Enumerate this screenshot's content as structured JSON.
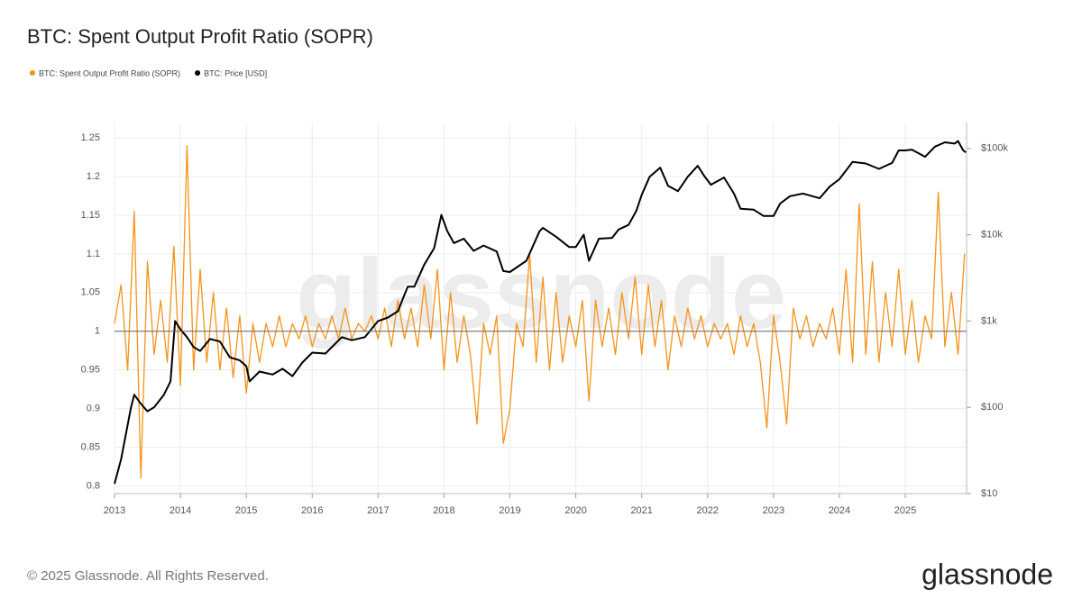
{
  "chart_data": {
    "type": "line",
    "title": "BTC: Spent Output Profit Ratio (SOPR)",
    "watermark": "glassnode",
    "copyright": "© 2025 Glassnode. All Rights Reserved.",
    "logo": "glassnode",
    "xlim": [
      2013,
      2025.93
    ],
    "xticks": [
      2013,
      2014,
      2015,
      2016,
      2017,
      2018,
      2019,
      2020,
      2021,
      2022,
      2023,
      2024,
      2025
    ],
    "ylim": [
      0.79,
      1.27
    ],
    "yticks": [
      0.8,
      0.85,
      0.9,
      0.95,
      1,
      1.05,
      1.1,
      1.15,
      1.2,
      1.25
    ],
    "y2lim": [
      10,
      200000
    ],
    "y2scale": "log",
    "y2ticks": [
      {
        "value": 10,
        "label": "$10"
      },
      {
        "value": 100,
        "label": "$100"
      },
      {
        "value": 1000,
        "label": "$1k"
      },
      {
        "value": 10000,
        "label": "$10k"
      },
      {
        "value": 100000,
        "label": "$100k"
      }
    ],
    "hline": 1,
    "grid": true,
    "legend": "top-left",
    "series": [
      {
        "name": "BTC: Spent Output Profit Ratio (SOPR)",
        "color": "#f7931a",
        "axis": "y",
        "x": [
          2013.0,
          2013.1,
          2013.2,
          2013.3,
          2013.4,
          2013.5,
          2013.6,
          2013.7,
          2013.8,
          2013.9,
          2014.0,
          2014.1,
          2014.2,
          2014.3,
          2014.4,
          2014.5,
          2014.6,
          2014.7,
          2014.8,
          2014.9,
          2015.0,
          2015.1,
          2015.2,
          2015.3,
          2015.4,
          2015.5,
          2015.6,
          2015.7,
          2015.8,
          2015.9,
          2016.0,
          2016.1,
          2016.2,
          2016.3,
          2016.4,
          2016.5,
          2016.6,
          2016.7,
          2016.8,
          2016.9,
          2017.0,
          2017.1,
          2017.2,
          2017.3,
          2017.4,
          2017.5,
          2017.6,
          2017.7,
          2017.8,
          2017.9,
          2018.0,
          2018.1,
          2018.2,
          2018.3,
          2018.4,
          2018.5,
          2018.6,
          2018.7,
          2018.8,
          2018.9,
          2019.0,
          2019.1,
          2019.2,
          2019.3,
          2019.4,
          2019.5,
          2019.6,
          2019.7,
          2019.8,
          2019.9,
          2020.0,
          2020.1,
          2020.2,
          2020.3,
          2020.4,
          2020.5,
          2020.6,
          2020.7,
          2020.8,
          2020.9,
          2021.0,
          2021.1,
          2021.2,
          2021.3,
          2021.4,
          2021.5,
          2021.6,
          2021.7,
          2021.8,
          2021.9,
          2022.0,
          2022.1,
          2022.2,
          2022.3,
          2022.4,
          2022.5,
          2022.6,
          2022.7,
          2022.8,
          2022.9,
          2023.0,
          2023.1,
          2023.2,
          2023.3,
          2023.4,
          2023.5,
          2023.6,
          2023.7,
          2023.8,
          2023.9,
          2024.0,
          2024.1,
          2024.2,
          2024.3,
          2024.4,
          2024.5,
          2024.6,
          2024.7,
          2024.8,
          2024.9,
          2025.0,
          2025.1,
          2025.2,
          2025.3,
          2025.4,
          2025.5,
          2025.6,
          2025.7,
          2025.8,
          2025.9
        ],
        "values": [
          1.01,
          1.06,
          0.95,
          1.155,
          0.81,
          1.09,
          0.97,
          1.04,
          0.96,
          1.11,
          0.93,
          1.24,
          0.95,
          1.08,
          0.96,
          1.05,
          0.95,
          1.03,
          0.94,
          1.02,
          0.92,
          1.01,
          0.96,
          1.01,
          0.98,
          1.02,
          0.98,
          1.01,
          0.99,
          1.02,
          0.98,
          1.01,
          0.99,
          1.02,
          0.99,
          1.03,
          0.99,
          1.01,
          1.0,
          1.02,
          0.99,
          1.03,
          0.98,
          1.04,
          0.99,
          1.03,
          0.98,
          1.06,
          0.99,
          1.08,
          0.95,
          1.05,
          0.96,
          1.02,
          0.97,
          0.88,
          1.01,
          0.97,
          1.02,
          0.855,
          0.9,
          1.01,
          0.98,
          1.1,
          0.96,
          1.07,
          0.95,
          1.05,
          0.96,
          1.02,
          0.98,
          1.04,
          0.91,
          1.04,
          0.98,
          1.03,
          0.97,
          1.05,
          0.99,
          1.07,
          0.97,
          1.06,
          0.98,
          1.04,
          0.95,
          1.02,
          0.98,
          1.03,
          0.99,
          1.02,
          0.98,
          1.01,
          0.99,
          1.01,
          0.97,
          1.02,
          0.98,
          1.01,
          0.96,
          0.875,
          1.02,
          0.96,
          0.88,
          1.03,
          0.99,
          1.02,
          0.98,
          1.01,
          0.99,
          1.03,
          0.97,
          1.08,
          0.96,
          1.165,
          0.97,
          1.09,
          0.96,
          1.05,
          0.98,
          1.08,
          0.97,
          1.04,
          0.96,
          1.02,
          0.99,
          1.18,
          0.98,
          1.05,
          0.97,
          1.1
        ]
      },
      {
        "name": "BTC: Price [USD]",
        "color": "#000000",
        "axis": "y2",
        "x": [
          2013.0,
          2013.1,
          2013.25,
          2013.3,
          2013.4,
          2013.5,
          2013.6,
          2013.75,
          2013.85,
          2013.92,
          2014.0,
          2014.1,
          2014.2,
          2014.3,
          2014.45,
          2014.6,
          2014.75,
          2014.9,
          2015.0,
          2015.05,
          2015.2,
          2015.4,
          2015.55,
          2015.7,
          2015.85,
          2016.0,
          2016.2,
          2016.45,
          2016.6,
          2016.8,
          2017.0,
          2017.15,
          2017.3,
          2017.45,
          2017.55,
          2017.7,
          2017.85,
          2017.96,
          2018.05,
          2018.15,
          2018.3,
          2018.45,
          2018.6,
          2018.8,
          2018.9,
          2019.0,
          2019.25,
          2019.45,
          2019.5,
          2019.7,
          2019.9,
          2020.0,
          2020.12,
          2020.2,
          2020.35,
          2020.55,
          2020.65,
          2020.8,
          2020.92,
          2021.0,
          2021.12,
          2021.28,
          2021.4,
          2021.55,
          2021.7,
          2021.85,
          2021.95,
          2022.05,
          2022.25,
          2022.4,
          2022.5,
          2022.7,
          2022.85,
          2023.0,
          2023.1,
          2023.25,
          2023.45,
          2023.7,
          2023.85,
          2024.0,
          2024.2,
          2024.4,
          2024.6,
          2024.8,
          2024.9,
          2025.0,
          2025.1,
          2025.3,
          2025.45,
          2025.6,
          2025.75,
          2025.8,
          2025.88,
          2025.92
        ],
        "values": [
          13,
          25,
          100,
          140,
          110,
          90,
          100,
          140,
          200,
          1000,
          800,
          650,
          500,
          450,
          620,
          580,
          380,
          350,
          300,
          200,
          260,
          240,
          280,
          230,
          330,
          430,
          420,
          650,
          600,
          650,
          1000,
          1100,
          1300,
          2500,
          2500,
          4500,
          7000,
          17000,
          11000,
          8000,
          9000,
          6500,
          7500,
          6400,
          3800,
          3700,
          5000,
          11000,
          12000,
          9500,
          7200,
          7200,
          10000,
          5000,
          9000,
          9200,
          11500,
          13000,
          19000,
          29000,
          47000,
          60000,
          37000,
          32000,
          47000,
          63000,
          48000,
          38000,
          46000,
          30000,
          20000,
          19500,
          16500,
          16500,
          23000,
          28000,
          30000,
          26500,
          36000,
          44000,
          70000,
          67000,
          58000,
          68000,
          95000,
          95000,
          97000,
          80000,
          105000,
          118000,
          114000,
          122000,
          95000,
          90000
        ]
      }
    ]
  }
}
